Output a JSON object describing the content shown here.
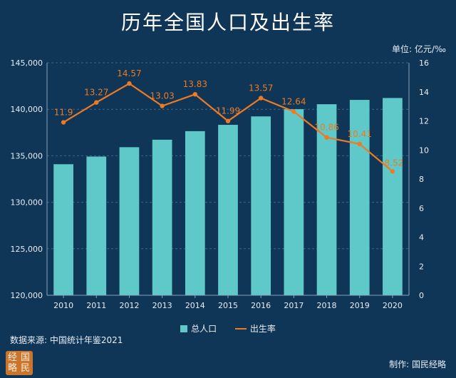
{
  "title": "历年全国人口及出生率",
  "unit_label": "单位: 亿元/‰",
  "source": "数据来源: 中国统计年鉴2021",
  "credit": "制作: 国民经略",
  "logo_text": "经国略民",
  "colors": {
    "background": "#0f3557",
    "bar": "#5ec9c8",
    "line": "#ee7a22",
    "label": "#ee7a22"
  },
  "chart_data": {
    "type": "bar+line",
    "categories": [
      "2010",
      "2011",
      "2012",
      "2013",
      "2014",
      "2015",
      "2016",
      "2017",
      "2018",
      "2019",
      "2020"
    ],
    "series": [
      {
        "name": "总人口",
        "type": "bar",
        "axis": "left",
        "values": [
          134091,
          134916,
          135922,
          136726,
          137646,
          138326,
          139232,
          140011,
          140541,
          141008,
          141212
        ]
      },
      {
        "name": "出生率",
        "type": "line",
        "axis": "right",
        "values": [
          11.9,
          13.27,
          14.57,
          13.03,
          13.83,
          11.99,
          13.57,
          12.64,
          10.86,
          10.41,
          8.52
        ],
        "labels": [
          "11.9",
          "13.27",
          "14.57",
          "13.03",
          "13.83",
          "11.99",
          "13.57",
          "12.64",
          "10.86",
          "10.41",
          "8.52"
        ]
      }
    ],
    "y_left": {
      "range": [
        120000,
        145000
      ],
      "ticks": [
        "120,000",
        "125,000",
        "130,000",
        "135,000",
        "140,000",
        "145,000"
      ]
    },
    "y_right": {
      "range": [
        0,
        16
      ],
      "ticks": [
        "0",
        "2",
        "4",
        "6",
        "8",
        "10",
        "12",
        "14",
        "16"
      ]
    },
    "grid": true,
    "legend": "bottom"
  }
}
